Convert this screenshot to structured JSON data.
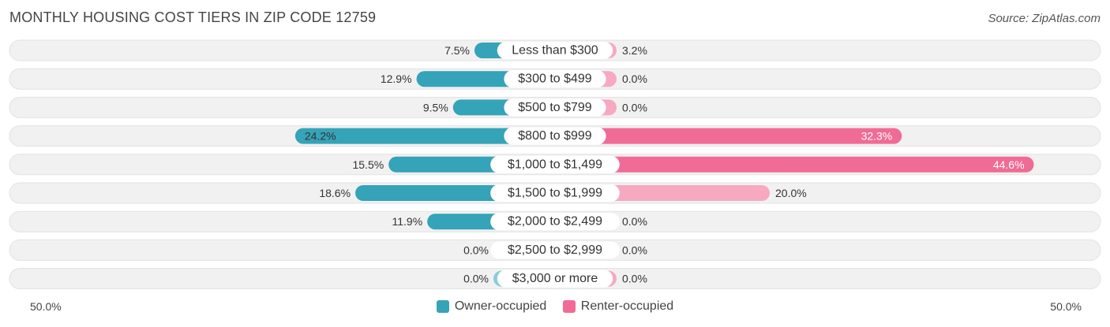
{
  "title": "MONTHLY HOUSING COST TIERS IN ZIP CODE 12759",
  "source": "Source: ZipAtlas.com",
  "colors": {
    "owner": "#35a3b8",
    "owner_light": "#86cdd8",
    "renter": "#f06b96",
    "renter_light": "#f6a9c0",
    "track": "#f1f1f1"
  },
  "axis": {
    "left_label": "50.0%",
    "right_label": "50.0%"
  },
  "legend": {
    "owner": "Owner-occupied",
    "renter": "Renter-occupied"
  },
  "chart_data": {
    "type": "bar",
    "orientation": "horizontal-diverging",
    "xlim": [
      -50,
      50
    ],
    "categories": [
      "Less than $300",
      "$300 to $499",
      "$500 to $799",
      "$800 to $999",
      "$1,000 to $1,499",
      "$1,500 to $1,999",
      "$2,000 to $2,499",
      "$2,500 to $2,999",
      "$3,000 or more"
    ],
    "series": [
      {
        "name": "Owner-occupied",
        "values": [
          7.5,
          12.9,
          9.5,
          24.2,
          15.5,
          18.6,
          11.9,
          0.0,
          0.0
        ],
        "labels": [
          "7.5%",
          "12.9%",
          "9.5%",
          "24.2%",
          "15.5%",
          "18.6%",
          "11.9%",
          "0.0%",
          "0.0%"
        ]
      },
      {
        "name": "Renter-occupied",
        "values": [
          3.2,
          0.0,
          0.0,
          32.3,
          44.6,
          20.0,
          0.0,
          0.0,
          0.0
        ],
        "labels": [
          "3.2%",
          "0.0%",
          "0.0%",
          "32.3%",
          "44.6%",
          "20.0%",
          "0.0%",
          "0.0%",
          "0.0%"
        ]
      }
    ]
  }
}
